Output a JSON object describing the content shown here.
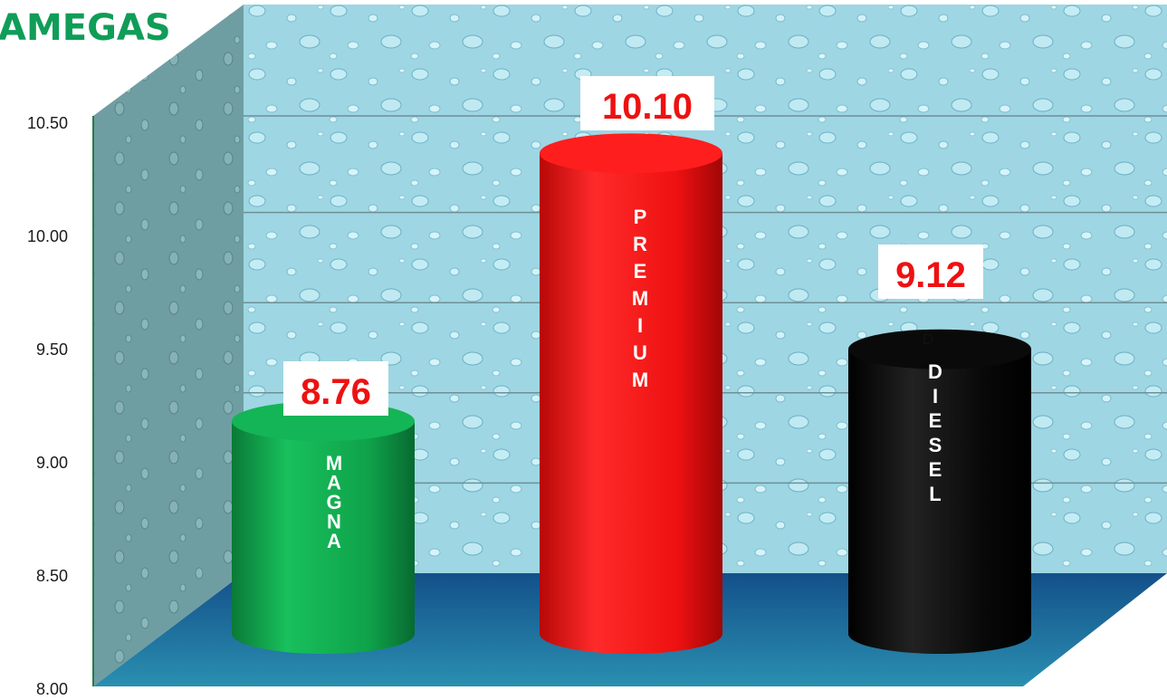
{
  "title_fragment": "AMEGAS",
  "chart_data": {
    "type": "bar",
    "style": "3d-cylinder",
    "categories": [
      "MAGNA",
      "PREMIUM",
      "DIESEL"
    ],
    "values": [
      8.76,
      10.1,
      9.12
    ],
    "data_labels": [
      "8.76",
      "10.10",
      "9.12"
    ],
    "ylim": [
      8.0,
      10.5
    ],
    "yticks": [
      "8.00",
      "8.50",
      "9.00",
      "9.50",
      "10.00",
      "10.50"
    ],
    "grid": true,
    "legend": "none",
    "colors": [
      "#0fa24a",
      "#ee1111",
      "#050505"
    ],
    "bar_text": [
      "MAGNA",
      "PREMIUM",
      "DIESEL"
    ],
    "extra_annotation": "D"
  }
}
